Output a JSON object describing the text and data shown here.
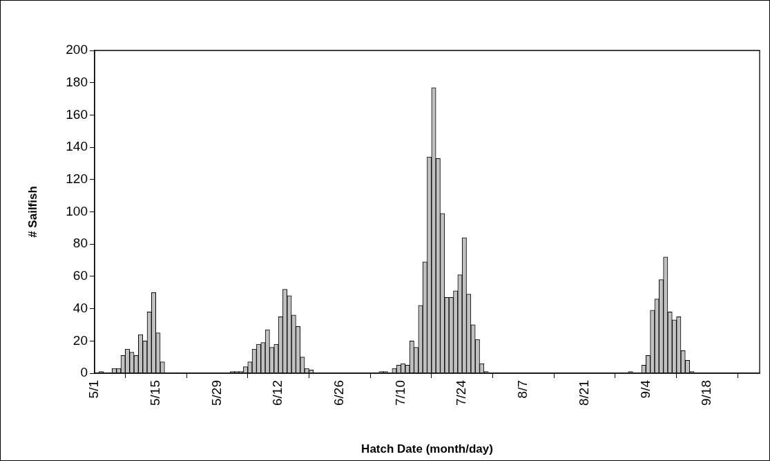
{
  "chart_data": {
    "type": "histogram",
    "xlabel": "Hatch Date (month/day)",
    "ylabel": "# Sailfish",
    "color": "#c0c0c0",
    "bins": [
      "--05-01",
      "--05-02",
      "--05-03",
      "--05-04",
      "--05-05",
      "--05-06",
      "--05-07",
      "--05-08",
      "--05-09",
      "--05-10",
      "--05-11",
      "--05-12",
      "--05-13",
      "--05-14",
      "--05-15",
      "--05-16",
      "--05-17",
      "--05-18",
      "--05-19",
      "--05-20",
      "--05-21",
      "--05-22",
      "--05-23",
      "--05-24",
      "--05-25",
      "--05-26",
      "--05-27",
      "--05-28",
      "--05-29",
      "--05-30",
      "--05-31",
      "--06-01",
      "--06-02",
      "--06-03",
      "--06-04",
      "--06-05",
      "--06-06",
      "--06-07",
      "--06-08",
      "--06-09",
      "--06-10",
      "--06-11",
      "--06-12",
      "--06-13",
      "--06-14",
      "--06-15",
      "--06-16",
      "--06-17",
      "--06-18",
      "--06-19",
      "--06-20",
      "--06-21",
      "--06-22",
      "--06-23",
      "--06-24",
      "--06-25",
      "--06-26",
      "--06-27",
      "--06-28",
      "--06-29",
      "--06-30",
      "--07-01",
      "--07-02",
      "--07-03",
      "--07-04",
      "--07-05",
      "--07-06",
      "--07-07",
      "--07-08",
      "--07-09",
      "--07-10",
      "--07-11",
      "--07-12",
      "--07-13",
      "--07-14",
      "--07-15",
      "--07-16",
      "--07-17",
      "--07-18",
      "--07-19",
      "--07-20",
      "--07-21",
      "--07-22",
      "--07-23",
      "--07-24",
      "--07-25",
      "--07-26",
      "--07-27",
      "--07-28",
      "--07-29",
      "--07-30",
      "--07-31",
      "--08-01",
      "--08-02",
      "--08-03",
      "--08-04",
      "--08-05",
      "--08-06",
      "--08-07",
      "--08-08",
      "--08-09",
      "--08-10",
      "--08-11",
      "--08-12",
      "--08-13",
      "--08-14",
      "--08-15",
      "--08-16",
      "--08-17",
      "--08-18",
      "--08-19",
      "--08-20",
      "--08-21",
      "--08-22",
      "--08-23",
      "--08-24",
      "--08-25",
      "--08-26",
      "--08-27",
      "--08-28",
      "--08-29",
      "--08-30",
      "--08-31",
      "--09-01",
      "--09-02",
      "--09-03",
      "--09-04",
      "--09-05",
      "--09-06",
      "--09-07",
      "--09-08",
      "--09-09",
      "--09-10",
      "--09-11",
      "--09-12",
      "--09-13",
      "--09-14",
      "--09-15",
      "--09-16",
      "--09-17",
      "--09-18",
      "--09-19",
      "--09-20",
      "--09-21",
      "--09-22",
      "--09-23",
      "--09-24",
      "--09-25",
      "--09-26",
      "--09-27",
      "--09-28",
      "--09-29",
      "--09-30"
    ],
    "values": [
      0,
      1,
      0,
      0,
      3,
      3,
      11,
      15,
      13,
      11,
      24,
      20,
      38,
      50,
      25,
      7,
      0,
      0,
      0,
      0,
      0,
      0,
      0,
      0,
      0,
      0,
      0,
      0,
      0,
      0,
      0,
      1,
      1,
      1,
      4,
      7,
      15,
      18,
      19,
      27,
      16,
      18,
      35,
      52,
      48,
      36,
      29,
      10,
      3,
      2,
      0,
      0,
      0,
      0,
      0,
      0,
      0,
      0,
      0,
      0,
      0,
      0,
      0,
      0,
      0,
      1,
      1,
      0,
      3,
      5,
      6,
      5,
      20,
      16,
      42,
      69,
      134,
      177,
      133,
      99,
      47,
      47,
      51,
      61,
      84,
      49,
      30,
      21,
      6,
      1,
      0,
      0,
      0,
      0,
      0,
      0,
      0,
      0,
      0,
      0,
      0,
      0,
      0,
      0,
      0,
      0,
      0,
      0,
      0,
      0,
      0,
      0,
      0,
      0,
      0,
      0,
      0,
      0,
      0,
      0,
      0,
      0,
      1,
      0,
      0,
      5,
      11,
      39,
      46,
      58,
      72,
      38,
      33,
      35,
      14,
      8,
      1,
      0,
      0,
      0,
      0,
      0,
      0,
      0,
      0,
      0,
      0,
      0,
      0,
      0,
      0,
      0
    ],
    "xlim": [
      "--05-01",
      "--09-30"
    ],
    "xticks": [
      {
        "value": "--05-01",
        "label": "5/1"
      },
      {
        "value": "--05-15",
        "label": "5/15"
      },
      {
        "value": "--05-29",
        "label": "5/29"
      },
      {
        "value": "--06-12",
        "label": "6/12"
      },
      {
        "value": "--06-26",
        "label": "6/26"
      },
      {
        "value": "--07-10",
        "label": "7/10"
      },
      {
        "value": "--07-24",
        "label": "7/24"
      },
      {
        "value": "--08-07",
        "label": "8/7"
      },
      {
        "value": "--08-21",
        "label": "8/21"
      },
      {
        "value": "--09-04",
        "label": "9/4"
      },
      {
        "value": "--09-18",
        "label": "9/18"
      }
    ],
    "ylim": [
      0,
      200
    ],
    "yticks": [
      0,
      20,
      40,
      60,
      80,
      100,
      120,
      140,
      160,
      180,
      200
    ],
    "grid": false,
    "legend": false
  }
}
